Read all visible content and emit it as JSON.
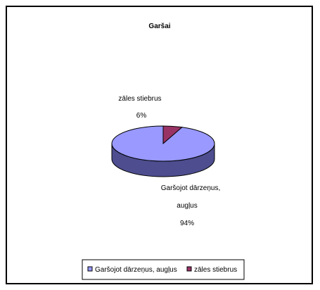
{
  "chart_data": {
    "type": "pie",
    "title": "Garšai",
    "style": "3d",
    "slices": [
      {
        "label": "Garšojot dārzeņus, augļus",
        "label_lines": [
          "Garšojot dārzeņus,",
          "augļus"
        ],
        "value": 94,
        "value_label": "94%",
        "color": "#9999ff",
        "side_color": "#4d4d8f"
      },
      {
        "label": "zāles stiebrus",
        "label_lines": [
          "zāles stiebrus"
        ],
        "value": 6,
        "value_label": "6%",
        "color": "#993366",
        "side_color": "#5c1f3d"
      }
    ],
    "legend_placement": "bottom",
    "legend": [
      "Garšojot dārzeņus, augļus",
      "zāles stiebrus"
    ]
  }
}
